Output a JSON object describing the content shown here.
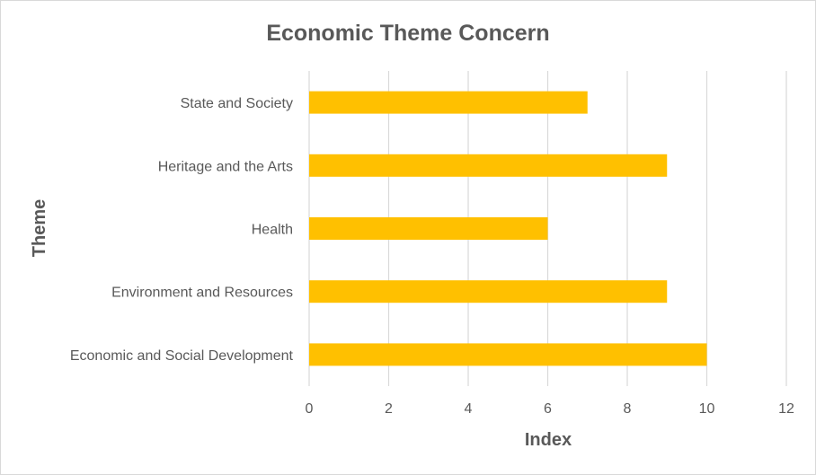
{
  "chart_data": {
    "type": "bar",
    "orientation": "horizontal",
    "title": "Economic Theme Concern",
    "xlabel": "Index",
    "ylabel": "Theme",
    "categories": [
      "State and Society",
      "Heritage and the Arts",
      "Health",
      "Environment and Resources",
      "Economic and Social Development"
    ],
    "values": [
      7,
      9,
      6,
      9,
      10
    ],
    "xlim": [
      0,
      12
    ],
    "xticks": [
      "0",
      "2",
      "4",
      "6",
      "8",
      "10",
      "12"
    ],
    "grid": true,
    "legend": "none",
    "bar_color": "#FFC000"
  }
}
